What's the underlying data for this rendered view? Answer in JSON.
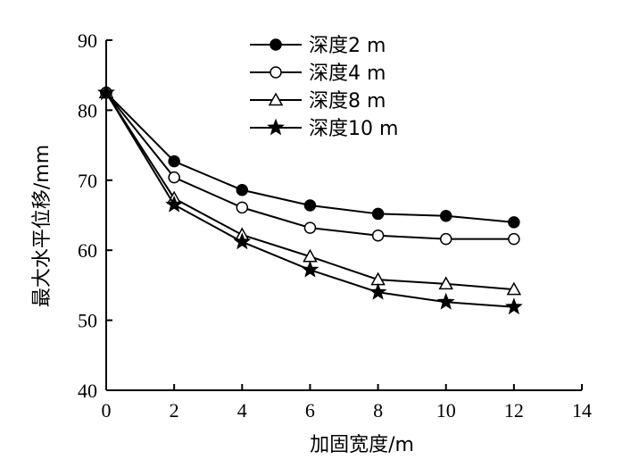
{
  "chart_data": {
    "type": "line",
    "xlabel": "加固宽度/m",
    "ylabel": "最大水平位移/mm",
    "xlim": [
      0,
      14
    ],
    "ylim": [
      40,
      90
    ],
    "xticks": [
      0,
      2,
      4,
      6,
      8,
      10,
      12,
      14
    ],
    "yticks": [
      40,
      50,
      60,
      70,
      80,
      90
    ],
    "grid": false,
    "legend_position": "top-center",
    "x": [
      0,
      2,
      4,
      6,
      8,
      10,
      12
    ],
    "series": [
      {
        "name": "深度2 m",
        "marker": "filled-circle",
        "values": [
          82.5,
          72.7,
          68.6,
          66.4,
          65.2,
          64.9,
          64.0
        ]
      },
      {
        "name": "深度4 m",
        "marker": "open-circle",
        "values": [
          82.5,
          70.4,
          66.1,
          63.2,
          62.1,
          61.6,
          61.6
        ]
      },
      {
        "name": "深度8 m",
        "marker": "open-triangle",
        "values": [
          82.5,
          67.4,
          62.2,
          59.1,
          55.8,
          55.2,
          54.4
        ]
      },
      {
        "name": "深度10 m",
        "marker": "filled-star",
        "values": [
          82.5,
          66.5,
          61.2,
          57.2,
          54.0,
          52.6,
          51.9
        ]
      }
    ]
  }
}
